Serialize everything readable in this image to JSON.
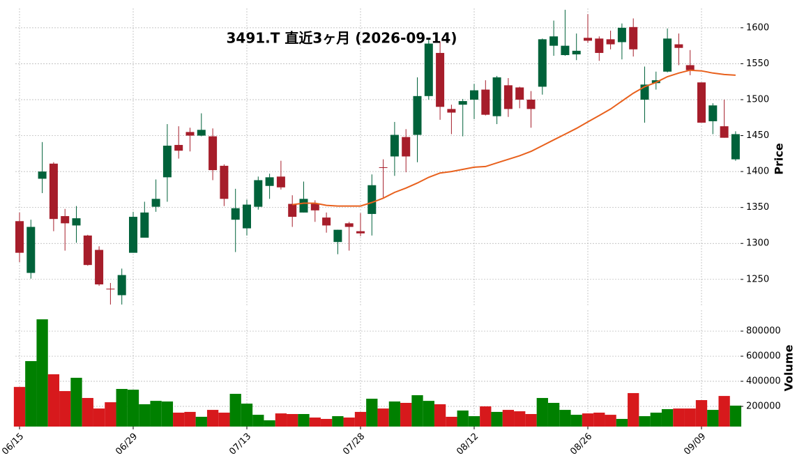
{
  "chart_data": {
    "type": "candlestick",
    "title": "3491.T  直近3ヶ月  (2026-09-14)",
    "ylabel": "Price",
    "volume_label": "Volume",
    "categories": [
      "06/15",
      null,
      null,
      null,
      null,
      null,
      null,
      null,
      null,
      null,
      "06/29",
      null,
      null,
      null,
      null,
      null,
      null,
      null,
      null,
      null,
      "07/13",
      null,
      null,
      null,
      null,
      null,
      null,
      null,
      null,
      null,
      "07/28",
      null,
      null,
      null,
      null,
      null,
      null,
      null,
      null,
      null,
      "08/12",
      null,
      null,
      null,
      null,
      null,
      null,
      null,
      null,
      null,
      "08/26",
      null,
      null,
      null,
      null,
      null,
      null,
      null,
      null,
      null,
      "09/09",
      null,
      null,
      null
    ],
    "open": [
      1331,
      1259,
      1390,
      1411,
      1338,
      1325,
      1311,
      1291,
      1237,
      1228,
      1287,
      1308,
      1351,
      1392,
      1437,
      1455,
      1450,
      1449,
      1408,
      1333,
      1321,
      1351,
      1380,
      1393,
      1355,
      1343,
      1355,
      1336,
      1302,
      1328,
      1317,
      1341,
      1406,
      1421,
      1448,
      1451,
      1505,
      1565,
      1487,
      1493,
      1500,
      1514,
      1477,
      1520,
      1517,
      1500,
      1518,
      1575,
      1562,
      1563,
      1586,
      1585,
      1584,
      1580,
      1601,
      1500,
      1523,
      1539,
      1577,
      1548,
      1524,
      1470,
      1463,
      1417
    ],
    "high": [
      1343,
      1333,
      1441,
      1413,
      1348,
      1352,
      1312,
      1296,
      1245,
      1265,
      1344,
      1358,
      1389,
      1466,
      1463,
      1461,
      1481,
      1460,
      1410,
      1376,
      1361,
      1393,
      1397,
      1415,
      1367,
      1386,
      1360,
      1343,
      1319,
      1330,
      1342,
      1396,
      1417,
      1469,
      1459,
      1531,
      1585,
      1581,
      1493,
      1501,
      1522,
      1527,
      1533,
      1530,
      1518,
      1512,
      1585,
      1610,
      1625,
      1592,
      1619,
      1588,
      1596,
      1606,
      1613,
      1546,
      1539,
      1599,
      1592,
      1569,
      1524,
      1495,
      1500,
      1456
    ],
    "low": [
      1274,
      1251,
      1370,
      1317,
      1290,
      1301,
      1269,
      1241,
      1215,
      1215,
      1287,
      1308,
      1344,
      1358,
      1418,
      1428,
      1449,
      1388,
      1352,
      1288,
      1311,
      1347,
      1362,
      1375,
      1323,
      1343,
      1330,
      1315,
      1285,
      1290,
      1310,
      1311,
      1364,
      1394,
      1399,
      1413,
      1500,
      1472,
      1452,
      1449,
      1473,
      1478,
      1466,
      1476,
      1488,
      1461,
      1507,
      1561,
      1561,
      1555,
      1579,
      1554,
      1570,
      1556,
      1560,
      1468,
      1514,
      1538,
      1548,
      1534,
      1468,
      1452,
      1447,
      1415
    ],
    "close": [
      1287,
      1323,
      1400,
      1334,
      1328,
      1335,
      1270,
      1243,
      1236,
      1256,
      1337,
      1343,
      1362,
      1436,
      1429,
      1450,
      1458,
      1402,
      1362,
      1349,
      1354,
      1388,
      1392,
      1378,
      1337,
      1362,
      1346,
      1325,
      1319,
      1323,
      1314,
      1381,
      1405,
      1451,
      1421,
      1505,
      1578,
      1490,
      1482,
      1498,
      1513,
      1479,
      1531,
      1487,
      1500,
      1487,
      1584,
      1588,
      1575,
      1568,
      1582,
      1565,
      1577,
      1600,
      1570,
      1521,
      1527,
      1585,
      1572,
      1541,
      1468,
      1492,
      1447,
      1452
    ],
    "volume": [
      355000,
      561000,
      894000,
      456000,
      322000,
      428000,
      267000,
      183000,
      233000,
      339000,
      333000,
      217000,
      244000,
      239000,
      150000,
      156000,
      117000,
      172000,
      150000,
      300000,
      222000,
      133000,
      89000,
      144000,
      139000,
      139000,
      111000,
      100000,
      122000,
      111000,
      156000,
      261000,
      183000,
      239000,
      228000,
      289000,
      244000,
      217000,
      117000,
      167000,
      122000,
      200000,
      156000,
      172000,
      161000,
      139000,
      267000,
      228000,
      172000,
      133000,
      144000,
      150000,
      133000,
      100000,
      306000,
      122000,
      150000,
      178000,
      183000,
      183000,
      250000,
      172000,
      283000,
      206000
    ],
    "ma": [
      null,
      null,
      null,
      null,
      null,
      null,
      null,
      null,
      null,
      null,
      null,
      null,
      null,
      null,
      null,
      null,
      null,
      null,
      null,
      null,
      null,
      null,
      null,
      null,
      1354,
      1356,
      1356,
      1353,
      1352,
      1352,
      1352,
      1357,
      1363,
      1371,
      1377,
      1384,
      1392,
      1398,
      1400,
      1403,
      1406,
      1407,
      1412,
      1417,
      1422,
      1428,
      1436,
      1444,
      1452,
      1460,
      1469,
      1478,
      1487,
      1498,
      1509,
      1518,
      1524,
      1532,
      1537,
      1541,
      1540,
      1537,
      1535,
      1534
    ],
    "up_color": "#00623a",
    "down_color": "#a61d2a",
    "volume_up_color": "#008000",
    "volume_down_color": "#d7191c",
    "ma_color": "#e8601c",
    "ylim": [
      1212,
      1627
    ],
    "yticks": [
      1250,
      1300,
      1350,
      1400,
      1450,
      1500,
      1550,
      1600
    ],
    "volume_ylim": [
      39000,
      967000
    ],
    "volume_yticks": [
      200000,
      400000,
      600000,
      800000
    ],
    "grid": true
  }
}
